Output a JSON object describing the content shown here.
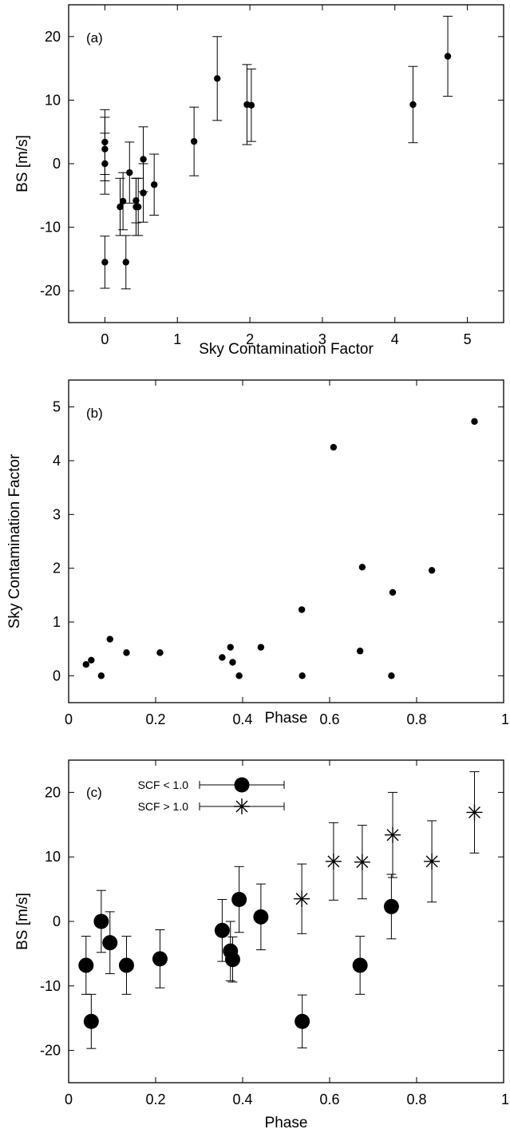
{
  "chart_data": [
    {
      "type": "scatter",
      "panel_label": "(a)",
      "xlabel": "Sky Contamination Factor",
      "ylabel": "BS [m/s]",
      "xlim": [
        -0.5,
        5.5
      ],
      "ylim": [
        -25,
        25
      ],
      "xticks": [
        "0",
        "1",
        "2",
        "3",
        "4",
        "5"
      ],
      "yticks": [
        "-20",
        "-10",
        "0",
        "10",
        "20"
      ],
      "grid": false,
      "series": [
        {
          "marker": "dot",
          "error_bars": true,
          "points": [
            {
              "x": 0.0,
              "y": 3.4,
              "err": 5.1
            },
            {
              "x": 0.0,
              "y": 2.3,
              "err": 5.0
            },
            {
              "x": 0.0,
              "y": 0.0,
              "err": 4.8
            },
            {
              "x": 0.0,
              "y": -15.5,
              "err": 4.1
            },
            {
              "x": 0.21,
              "y": -6.8,
              "err": 4.5
            },
            {
              "x": 0.25,
              "y": -5.9,
              "err": 4.5
            },
            {
              "x": 0.29,
              "y": -15.5,
              "err": 4.2
            },
            {
              "x": 0.34,
              "y": -1.4,
              "err": 4.8
            },
            {
              "x": 0.43,
              "y": -5.8,
              "err": 3.5
            },
            {
              "x": 0.43,
              "y": -6.8,
              "err": 4.5
            },
            {
              "x": 0.46,
              "y": -6.8,
              "err": 4.5
            },
            {
              "x": 0.53,
              "y": -4.6,
              "err": 4.6
            },
            {
              "x": 0.53,
              "y": 0.7,
              "err": 5.1
            },
            {
              "x": 0.68,
              "y": -3.3,
              "err": 4.8
            },
            {
              "x": 1.23,
              "y": 3.5,
              "err": 5.4
            },
            {
              "x": 1.55,
              "y": 13.4,
              "err": 6.6
            },
            {
              "x": 1.96,
              "y": 9.3,
              "err": 6.3
            },
            {
              "x": 2.02,
              "y": 9.2,
              "err": 5.7
            },
            {
              "x": 4.25,
              "y": 9.3,
              "err": 6.0
            },
            {
              "x": 4.73,
              "y": 16.9,
              "err": 6.3
            }
          ]
        }
      ]
    },
    {
      "type": "scatter",
      "panel_label": "(b)",
      "xlabel": "Phase",
      "ylabel": "Sky Contamination Factor",
      "xlim": [
        0,
        1
      ],
      "ylim": [
        -0.5,
        5.5
      ],
      "xticks": [
        "0",
        "0.2",
        "0.4",
        "0.6",
        "0.8",
        "1"
      ],
      "yticks": [
        "0",
        "1",
        "2",
        "3",
        "4",
        "5"
      ],
      "grid": false,
      "series": [
        {
          "marker": "dot",
          "error_bars": false,
          "points": [
            {
              "x": 0.04,
              "y": 0.21
            },
            {
              "x": 0.052,
              "y": 0.29
            },
            {
              "x": 0.075,
              "y": 0.0
            },
            {
              "x": 0.095,
              "y": 0.68
            },
            {
              "x": 0.133,
              "y": 0.43
            },
            {
              "x": 0.21,
              "y": 0.43
            },
            {
              "x": 0.353,
              "y": 0.34
            },
            {
              "x": 0.372,
              "y": 0.53
            },
            {
              "x": 0.377,
              "y": 0.25
            },
            {
              "x": 0.392,
              "y": 0.0
            },
            {
              "x": 0.442,
              "y": 0.53
            },
            {
              "x": 0.536,
              "y": 1.23
            },
            {
              "x": 0.537,
              "y": 0.0
            },
            {
              "x": 0.609,
              "y": 4.25
            },
            {
              "x": 0.67,
              "y": 0.46
            },
            {
              "x": 0.675,
              "y": 2.02
            },
            {
              "x": 0.742,
              "y": 0.0
            },
            {
              "x": 0.745,
              "y": 1.55
            },
            {
              "x": 0.835,
              "y": 1.96
            },
            {
              "x": 0.933,
              "y": 4.73
            }
          ]
        }
      ]
    },
    {
      "type": "scatter",
      "panel_label": "(c)",
      "xlabel": "Phase",
      "ylabel": "BS [m/s]",
      "xlim": [
        0,
        1
      ],
      "ylim": [
        -25,
        25
      ],
      "xticks": [
        "0",
        "0.2",
        "0.4",
        "0.6",
        "0.8",
        "1"
      ],
      "yticks": [
        "-20",
        "-10",
        "0",
        "10",
        "20"
      ],
      "grid": false,
      "legend_position": "top-left",
      "series": [
        {
          "name": "SCF < 1.0",
          "marker": "filled-circle",
          "error_bars": true,
          "points": [
            {
              "x": 0.04,
              "y": -6.8,
              "err": 4.5
            },
            {
              "x": 0.052,
              "y": -15.5,
              "err": 4.2
            },
            {
              "x": 0.075,
              "y": 0.0,
              "err": 4.8
            },
            {
              "x": 0.095,
              "y": -3.3,
              "err": 4.8
            },
            {
              "x": 0.133,
              "y": -6.8,
              "err": 4.5
            },
            {
              "x": 0.21,
              "y": -5.8,
              "err": 4.5
            },
            {
              "x": 0.353,
              "y": -1.4,
              "err": 4.8
            },
            {
              "x": 0.372,
              "y": -4.6,
              "err": 4.6
            },
            {
              "x": 0.377,
              "y": -5.9,
              "err": 3.5
            },
            {
              "x": 0.392,
              "y": 3.4,
              "err": 5.1
            },
            {
              "x": 0.442,
              "y": 0.7,
              "err": 5.1
            },
            {
              "x": 0.537,
              "y": -15.5,
              "err": 4.1
            },
            {
              "x": 0.67,
              "y": -6.8,
              "err": 4.5
            },
            {
              "x": 0.742,
              "y": 2.3,
              "err": 5.0
            }
          ]
        },
        {
          "name": "SCF > 1.0",
          "marker": "asterisk",
          "error_bars": true,
          "points": [
            {
              "x": 0.536,
              "y": 3.5,
              "err": 5.4
            },
            {
              "x": 0.609,
              "y": 9.3,
              "err": 6.0
            },
            {
              "x": 0.675,
              "y": 9.2,
              "err": 5.7
            },
            {
              "x": 0.745,
              "y": 13.4,
              "err": 6.6
            },
            {
              "x": 0.835,
              "y": 9.3,
              "err": 6.3
            },
            {
              "x": 0.933,
              "y": 16.9,
              "err": 6.3
            }
          ]
        }
      ]
    }
  ]
}
